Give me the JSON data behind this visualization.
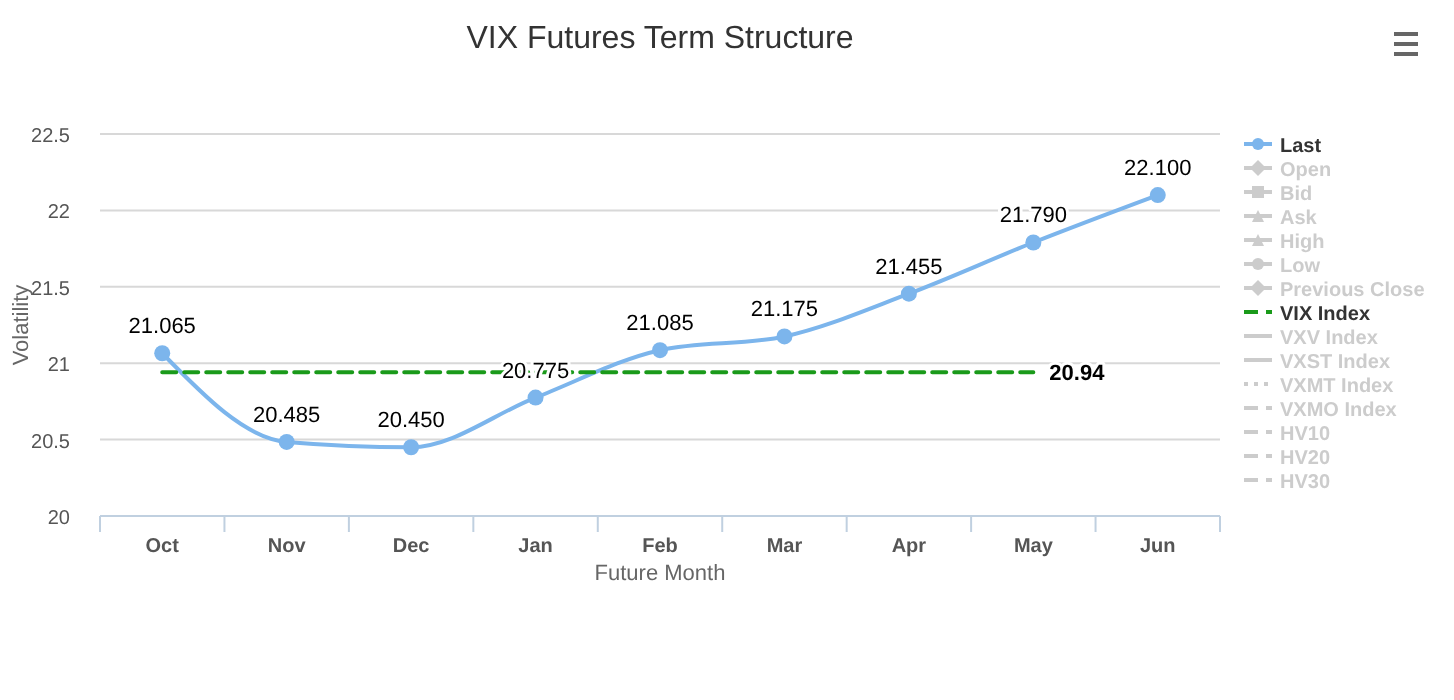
{
  "chart_data": {
    "type": "line",
    "title": "VIX Futures Term Structure",
    "xlabel": "Future Month",
    "ylabel": "Volatility",
    "categories": [
      "Oct",
      "Nov",
      "Dec",
      "Jan",
      "Feb",
      "Mar",
      "Apr",
      "May",
      "Jun"
    ],
    "ylim": [
      20,
      22.5
    ],
    "yticks": [
      20,
      20.5,
      21,
      21.5,
      22,
      22.5
    ],
    "grid": "y",
    "legend": "right",
    "series": [
      {
        "name": "Last",
        "color": "#7cb5ec",
        "marker": "circle",
        "values": [
          21.065,
          20.485,
          20.45,
          20.775,
          21.085,
          21.175,
          21.455,
          21.79,
          22.1
        ],
        "value_labels": [
          "21.065",
          "20.485",
          "20.450",
          "20.775",
          "21.085",
          "21.175",
          "21.455",
          "21.790",
          "22.100"
        ]
      },
      {
        "name": "Open",
        "color": "#cccccc",
        "marker": "diamond",
        "values": [
          null,
          null,
          null,
          null,
          null,
          null,
          null,
          null,
          null
        ]
      },
      {
        "name": "Bid",
        "color": "#cccccc",
        "marker": "square",
        "values": [
          null,
          null,
          null,
          null,
          null,
          null,
          null,
          null,
          null
        ]
      },
      {
        "name": "Ask",
        "color": "#cccccc",
        "marker": "triangle",
        "values": [
          null,
          null,
          null,
          null,
          null,
          null,
          null,
          null,
          null
        ]
      },
      {
        "name": "High",
        "color": "#cccccc",
        "marker": "triangle",
        "values": [
          null,
          null,
          null,
          null,
          null,
          null,
          null,
          null,
          null
        ]
      },
      {
        "name": "Low",
        "color": "#cccccc",
        "marker": "circle",
        "values": [
          null,
          null,
          null,
          null,
          null,
          null,
          null,
          null,
          null
        ]
      },
      {
        "name": "Previous Close",
        "color": "#cccccc",
        "marker": "diamond",
        "values": [
          null,
          null,
          null,
          null,
          null,
          null,
          null,
          null,
          null
        ]
      },
      {
        "name": "VIX Index",
        "color": "#1a9a1a",
        "marker": "none",
        "line_style": "dashed",
        "values": [
          20.94,
          20.94,
          20.94,
          20.94,
          20.94,
          20.94,
          20.94,
          20.94,
          null
        ],
        "value_labels": [
          null,
          null,
          null,
          null,
          null,
          null,
          null,
          "20.94",
          null
        ]
      },
      {
        "name": "VXV Index",
        "color": "#cccccc",
        "marker": "none",
        "values": [
          null,
          null,
          null,
          null,
          null,
          null,
          null,
          null,
          null
        ]
      },
      {
        "name": "VXST Index",
        "color": "#cccccc",
        "marker": "none",
        "values": [
          null,
          null,
          null,
          null,
          null,
          null,
          null,
          null,
          null
        ]
      },
      {
        "name": "VXMT Index",
        "color": "#cccccc",
        "marker": "none",
        "line_style": "dotted",
        "values": [
          null,
          null,
          null,
          null,
          null,
          null,
          null,
          null,
          null
        ]
      },
      {
        "name": "VXMO Index",
        "color": "#cccccc",
        "marker": "none",
        "line_style": "dashed",
        "values": [
          null,
          null,
          null,
          null,
          null,
          null,
          null,
          null,
          null
        ]
      },
      {
        "name": "HV10",
        "color": "#cccccc",
        "marker": "none",
        "line_style": "dashed",
        "values": [
          null,
          null,
          null,
          null,
          null,
          null,
          null,
          null,
          null
        ]
      },
      {
        "name": "HV20",
        "color": "#cccccc",
        "marker": "none",
        "line_style": "dashed",
        "values": [
          null,
          null,
          null,
          null,
          null,
          null,
          null,
          null,
          null
        ]
      },
      {
        "name": "HV30",
        "color": "#cccccc",
        "marker": "none",
        "line_style": "dashed",
        "values": [
          null,
          null,
          null,
          null,
          null,
          null,
          null,
          null,
          null
        ]
      }
    ]
  }
}
